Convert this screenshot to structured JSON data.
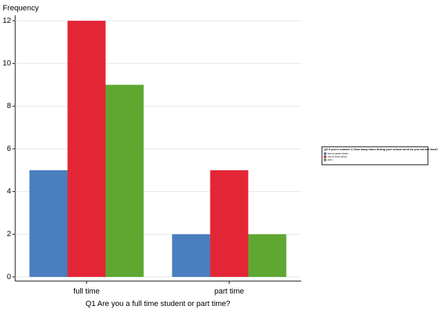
{
  "chart_data": {
    "type": "bar",
    "y_label": "Frequency",
    "x_label": "Q1 Are you a full time student or part time?",
    "categories": [
      "full time",
      "part time"
    ],
    "series": [
      {
        "name": "four to seven times",
        "color": "#4a7ebf",
        "values": [
          5,
          2
        ]
      },
      {
        "name": "one to three times",
        "color": "#e32636",
        "values": [
          12,
          5
        ]
      },
      {
        "name": "zero",
        "color": "#5ea832",
        "values": [
          9,
          2
        ]
      }
    ],
    "legend_title": "Q3 If you're number 2, How many times during your school week do you eat fast food?",
    "ylim": [
      0,
      12
    ],
    "yticks": [
      0,
      2,
      4,
      6,
      8,
      10,
      12
    ],
    "grid": true,
    "legend": "right"
  }
}
